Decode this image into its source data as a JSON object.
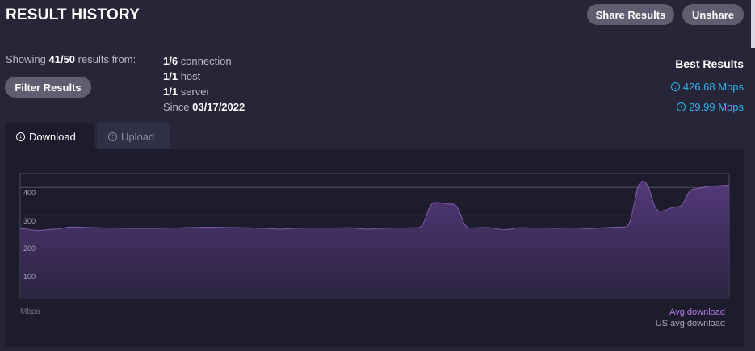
{
  "header": {
    "title": "RESULT HISTORY",
    "share_label": "Share Results",
    "unshare_label": "Unshare"
  },
  "filters": {
    "showing_prefix": "Showing",
    "showing_count": "41/50",
    "showing_suffix": "results from:",
    "filter_label": "Filter Results"
  },
  "summary": {
    "connection_count": "1/6",
    "connection_label": "connection",
    "host_count": "1/1",
    "host_label": "host",
    "server_count": "1/1",
    "server_label": "server",
    "since_label": "Since",
    "since_date": "03/17/2022"
  },
  "best": {
    "title": "Best Results",
    "download": "426.68 Mbps",
    "upload": "29.99 Mbps",
    "download_icon": "arrow-down-circle-icon",
    "upload_icon": "arrow-up-circle-icon"
  },
  "tabs": [
    {
      "label": "Download",
      "active": true
    },
    {
      "label": "Upload",
      "active": false
    }
  ],
  "chart_data": {
    "type": "area",
    "ylabel": "Mbps",
    "ylim": [
      0,
      450
    ],
    "yticks": [
      "100",
      "200",
      "300",
      "400"
    ],
    "grid": true,
    "series": [
      {
        "name": "Avg download",
        "color": "#b87de6",
        "values": [
          252,
          245,
          250,
          258,
          256,
          254,
          253,
          253,
          253,
          254,
          256,
          257,
          256,
          255,
          253,
          250,
          253,
          254,
          254,
          255,
          250,
          253,
          254,
          255,
          346,
          340,
          254,
          256,
          248,
          255,
          254,
          253,
          254,
          252,
          256,
          258,
          422,
          315,
          330,
          395,
          405,
          408
        ]
      }
    ],
    "legend": [
      "Avg download",
      "US avg download"
    ]
  }
}
